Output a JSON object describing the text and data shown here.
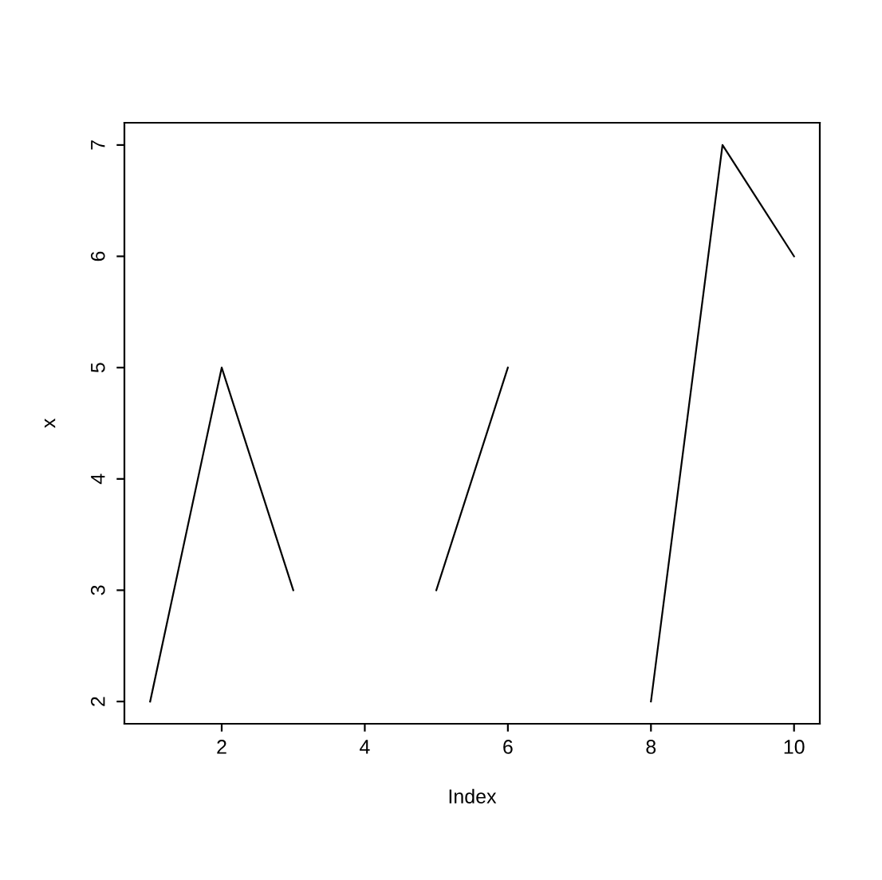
{
  "chart_data": {
    "type": "line",
    "xlabel": "Index",
    "ylabel": "x",
    "x": [
      1,
      2,
      3,
      4,
      5,
      6,
      7,
      8,
      9,
      10
    ],
    "series": [
      {
        "color": "#000000",
        "values": [
          2,
          5,
          3,
          null,
          3,
          5,
          null,
          2,
          7,
          6
        ]
      }
    ],
    "xlim": [
      0.64,
      10.36
    ],
    "ylim": [
      1.8,
      7.2
    ],
    "xticks": [
      2,
      4,
      6,
      8,
      10
    ],
    "yticks": [
      2,
      3,
      4,
      5,
      6,
      7
    ],
    "grid": false,
    "legend": false,
    "marker": "none",
    "line_style": "solid"
  }
}
